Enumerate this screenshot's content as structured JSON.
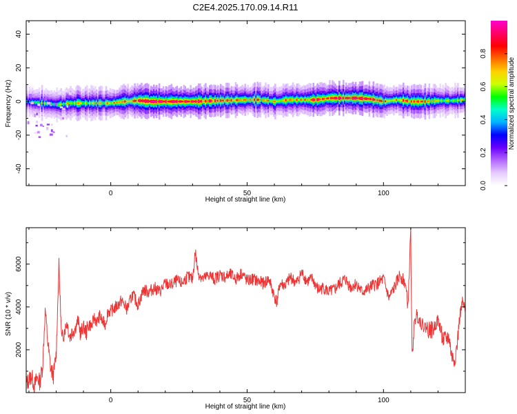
{
  "chart_data": [
    {
      "type": "heatmap",
      "title": "C2E4.2025.170.09.14.R11",
      "xlabel": "Height of straight line (km)",
      "ylabel": "Frequency (Hz)",
      "xlim": [
        -31,
        130
      ],
      "ylim": [
        -50,
        48
      ],
      "x_ticks": [
        0,
        50,
        100
      ],
      "y_ticks": [
        40,
        20,
        0,
        -20,
        -40
      ],
      "colorbar": {
        "label": "Normalized spectral amplitude",
        "range": [
          0,
          1
        ],
        "ticks": [
          "0.0",
          "0.2",
          "0.4",
          "0.6",
          "0.8"
        ],
        "colormap": [
          "#ffffff",
          "#e6ccff",
          "#b266ff",
          "#6a00ff",
          "#0000ff",
          "#00b3ff",
          "#00ffcc",
          "#00ff00",
          "#ccff00",
          "#ffd000",
          "#ff6a00",
          "#ff0000",
          "#ff0066",
          "#ff00cc"
        ]
      },
      "band": {
        "x": [
          -31,
          -25,
          -20,
          -15,
          -10,
          -5,
          0,
          5,
          10,
          15,
          20,
          25,
          30,
          40,
          50,
          55,
          60,
          65,
          70,
          75,
          80,
          85,
          90,
          95,
          100,
          105,
          110,
          115,
          120,
          125,
          130
        ],
        "center_hz": [
          0,
          -1,
          -2,
          -1,
          -1,
          -1,
          -1,
          0,
          0.5,
          0,
          0,
          0,
          0,
          0.5,
          1,
          1,
          0,
          1,
          1,
          1,
          2,
          2,
          2,
          1.5,
          0,
          1,
          0,
          0,
          0.5,
          0.5,
          1
        ],
        "amplitude": [
          0.45,
          0.5,
          0.55,
          0.6,
          0.6,
          0.65,
          0.7,
          0.8,
          0.85,
          0.95,
          0.95,
          0.95,
          0.9,
          0.8,
          0.75,
          0.7,
          0.75,
          0.7,
          0.75,
          0.8,
          0.9,
          0.95,
          0.95,
          0.85,
          0.7,
          0.75,
          0.8,
          0.7,
          0.6,
          0.6,
          0.55
        ]
      }
    },
    {
      "type": "line",
      "xlabel": "Height of straight line (km)",
      "ylabel": "SNR (10 * v/v)",
      "xlim": [
        -31,
        130
      ],
      "ylim": [
        0,
        7700
      ],
      "x_ticks": [
        0,
        50,
        100
      ],
      "y_ticks": [
        2000,
        4000,
        6000
      ],
      "color": "#ee3333",
      "series": [
        {
          "x": [
            -31,
            -29,
            -28,
            -27,
            -26,
            -25,
            -24,
            -23,
            -22,
            -21,
            -20,
            -19,
            -18,
            -17,
            -16,
            -15,
            -14,
            -13,
            -12,
            -11,
            -10,
            -9,
            -8,
            -7,
            -6,
            -5,
            -4,
            -3,
            -2,
            -1,
            0,
            2,
            4,
            6,
            8,
            10,
            12,
            14,
            16,
            18,
            20,
            22,
            24,
            26,
            28,
            30,
            31,
            32,
            34,
            36,
            38,
            40,
            42,
            44,
            46,
            48,
            50,
            52,
            54,
            56,
            58,
            60,
            61,
            62,
            64,
            66,
            68,
            70,
            72,
            74,
            76,
            78,
            80,
            82,
            84,
            86,
            88,
            90,
            92,
            94,
            96,
            98,
            100,
            102,
            104,
            106,
            108,
            109,
            110,
            110.5,
            111,
            112,
            114,
            116,
            118,
            120,
            122,
            124,
            125,
            126,
            127,
            128,
            129,
            130
          ],
          "values": [
            400,
            800,
            300,
            700,
            500,
            1200,
            3900,
            2200,
            1100,
            800,
            1800,
            6000,
            2400,
            2900,
            3300,
            2600,
            2900,
            3000,
            3400,
            2700,
            3100,
            2800,
            3200,
            3100,
            3500,
            3300,
            3600,
            3300,
            3200,
            3800,
            3800,
            4000,
            4300,
            3900,
            4600,
            4100,
            4800,
            4700,
            4900,
            4700,
            5100,
            5000,
            5200,
            5100,
            5400,
            5300,
            6600,
            5600,
            5300,
            5500,
            5300,
            5500,
            5400,
            5500,
            5300,
            5600,
            5200,
            5300,
            5200,
            5100,
            5300,
            4500,
            4200,
            5100,
            5000,
            5400,
            5100,
            5600,
            5200,
            5300,
            4800,
            4900,
            4700,
            4800,
            5100,
            5300,
            4900,
            5100,
            4700,
            4800,
            5000,
            5100,
            5300,
            4400,
            4900,
            5500,
            5100,
            4000,
            7600,
            1300,
            2800,
            3700,
            3200,
            3000,
            2900,
            3400,
            2400,
            2600,
            1700,
            1500,
            2200,
            3600,
            4200,
            3800
          ]
        }
      ]
    }
  ]
}
